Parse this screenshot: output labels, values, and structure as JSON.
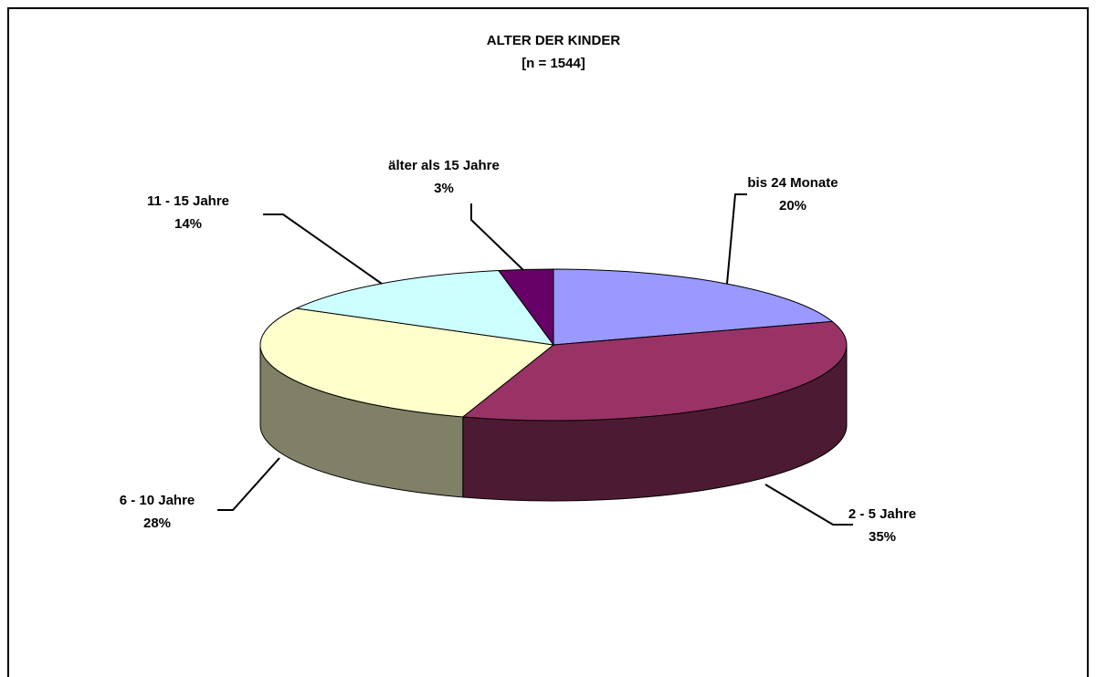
{
  "chart_data": {
    "type": "pie3d",
    "title": "ALTER DER KINDER",
    "subtitle": "[n = 1544]",
    "categories": [
      "bis 24 Monate",
      "2 - 5 Jahre",
      "6 - 10 Jahre",
      "11 - 15 Jahre",
      "älter als 15 Jahre"
    ],
    "values": [
      20,
      35,
      28,
      14,
      3
    ],
    "value_labels": [
      "20%",
      "35%",
      "28%",
      "14%",
      "3%"
    ],
    "colors": [
      "#9999ff",
      "#993366",
      "#ffffcc",
      "#ccffff",
      "#660066"
    ]
  }
}
